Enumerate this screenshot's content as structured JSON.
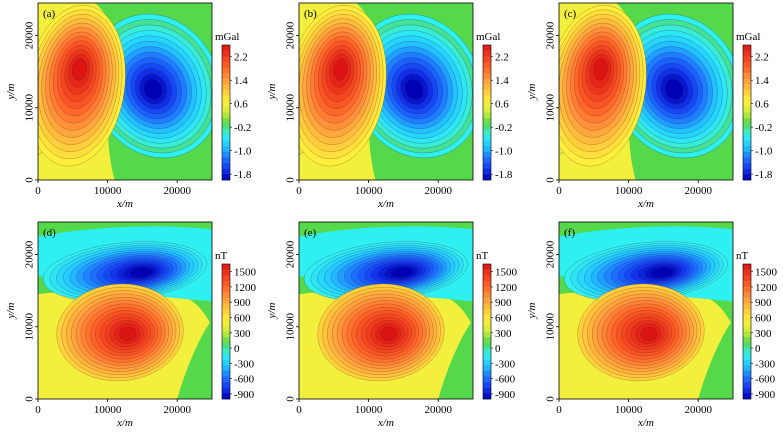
{
  "chart_data": [
    {
      "type": "heatmap",
      "panel": "(a)",
      "field": "gravity",
      "unit": "mGal",
      "xlabel": "x/m",
      "ylabel": "y/m",
      "xlim": [
        0,
        25000
      ],
      "ylim": [
        0,
        24500
      ],
      "xticks": [
        "0",
        "10000",
        "20000"
      ],
      "yticks": [
        "0",
        "10000",
        "20000"
      ],
      "colorbar_ticks": [
        "2.2",
        "1.4",
        "0.6",
        "-0.2",
        "-1.0",
        "-1.8"
      ],
      "colorbar_range": [
        -2.0,
        2.6
      ],
      "anomalies": [
        {
          "kind": "positive",
          "center": [
            6000,
            15500
          ],
          "peak": 2.4
        },
        {
          "kind": "negative",
          "center": [
            16500,
            12500
          ],
          "peak": -1.9
        }
      ]
    },
    {
      "type": "heatmap",
      "panel": "(b)",
      "field": "gravity",
      "unit": "mGal",
      "xlabel": "x/m",
      "ylabel": "y/m",
      "xlim": [
        0,
        25000
      ],
      "ylim": [
        0,
        24500
      ],
      "xticks": [
        "0",
        "10000",
        "20000"
      ],
      "yticks": [
        "0",
        "10000",
        "20000"
      ],
      "colorbar_ticks": [
        "2.2",
        "1.4",
        "0.6",
        "-0.2",
        "-1.0",
        "-1.8"
      ],
      "colorbar_range": [
        -2.0,
        2.6
      ],
      "anomalies": [
        {
          "kind": "positive",
          "center": [
            6000,
            15500
          ],
          "peak": 2.4
        },
        {
          "kind": "negative",
          "center": [
            16500,
            12500
          ],
          "peak": -1.9
        }
      ]
    },
    {
      "type": "heatmap",
      "panel": "(c)",
      "field": "gravity",
      "unit": "mGal",
      "xlabel": "x/m",
      "ylabel": "y/m",
      "xlim": [
        0,
        25000
      ],
      "ylim": [
        0,
        24500
      ],
      "xticks": [
        "0",
        "10000",
        "20000"
      ],
      "yticks": [
        "0",
        "10000",
        "20000"
      ],
      "colorbar_ticks": [
        "2.2",
        "1.4",
        "0.6",
        "-0.2",
        "-1.0",
        "-1.8"
      ],
      "colorbar_range": [
        -2.0,
        2.6
      ],
      "anomalies": [
        {
          "kind": "positive",
          "center": [
            6000,
            15500
          ],
          "peak": 2.4
        },
        {
          "kind": "negative",
          "center": [
            16500,
            12500
          ],
          "peak": -1.9
        }
      ]
    },
    {
      "type": "heatmap",
      "panel": "(d)",
      "field": "magnetic",
      "unit": "nT",
      "xlabel": "x/m",
      "ylabel": "y/m",
      "xlim": [
        0,
        25000
      ],
      "ylim": [
        0,
        24500
      ],
      "xticks": [
        "0",
        "10000",
        "20000"
      ],
      "yticks": [
        "0",
        "10000",
        "20000"
      ],
      "colorbar_ticks": [
        "1500",
        "1200",
        "900",
        "600",
        "300",
        "0",
        "-300",
        "-600",
        "-900"
      ],
      "colorbar_range": [
        -1000,
        1650
      ],
      "anomalies": [
        {
          "kind": "positive",
          "center": [
            13000,
            9000
          ],
          "peak": 1600
        },
        {
          "kind": "negative",
          "center": [
            15000,
            17500
          ],
          "peak": -950
        }
      ]
    },
    {
      "type": "heatmap",
      "panel": "(e)",
      "field": "magnetic",
      "unit": "nT",
      "xlabel": "x/m",
      "ylabel": "y/m",
      "xlim": [
        0,
        25000
      ],
      "ylim": [
        0,
        24500
      ],
      "xticks": [
        "0",
        "10000",
        "20000"
      ],
      "yticks": [
        "0",
        "10000",
        "20000"
      ],
      "colorbar_ticks": [
        "1500",
        "1200",
        "900",
        "600",
        "300",
        "0",
        "-300",
        "-600",
        "-900"
      ],
      "colorbar_range": [
        -1000,
        1650
      ],
      "anomalies": [
        {
          "kind": "positive",
          "center": [
            13000,
            9000
          ],
          "peak": 1600
        },
        {
          "kind": "negative",
          "center": [
            15000,
            17500
          ],
          "peak": -950
        }
      ]
    },
    {
      "type": "heatmap",
      "panel": "(f)",
      "field": "magnetic",
      "unit": "nT",
      "xlabel": "x/m",
      "ylabel": "y/m",
      "xlim": [
        0,
        25000
      ],
      "ylim": [
        0,
        24500
      ],
      "xticks": [
        "0",
        "10000",
        "20000"
      ],
      "yticks": [
        "0",
        "10000",
        "20000"
      ],
      "colorbar_ticks": [
        "1500",
        "1200",
        "900",
        "600",
        "300",
        "0",
        "-300",
        "-600",
        "-900"
      ],
      "colorbar_range": [
        -1000,
        1650
      ],
      "anomalies": [
        {
          "kind": "positive",
          "center": [
            13000,
            9000
          ],
          "peak": 1600
        },
        {
          "kind": "negative",
          "center": [
            15000,
            17500
          ],
          "peak": -950
        }
      ]
    }
  ],
  "colors": {
    "background_gravity": "#55d84a",
    "background_magnetic": "#55d84a",
    "yellow_band": "#f2f03c",
    "cyan_band": "#2ff0f0",
    "colormap": [
      "#0000b4",
      "#1438f0",
      "#1e78ff",
      "#22c8ff",
      "#33f0f0",
      "#55d84a",
      "#ccec3c",
      "#fff03c",
      "#ffc83c",
      "#ff963c",
      "#ff6428",
      "#f03c1e",
      "#dc1414"
    ]
  }
}
